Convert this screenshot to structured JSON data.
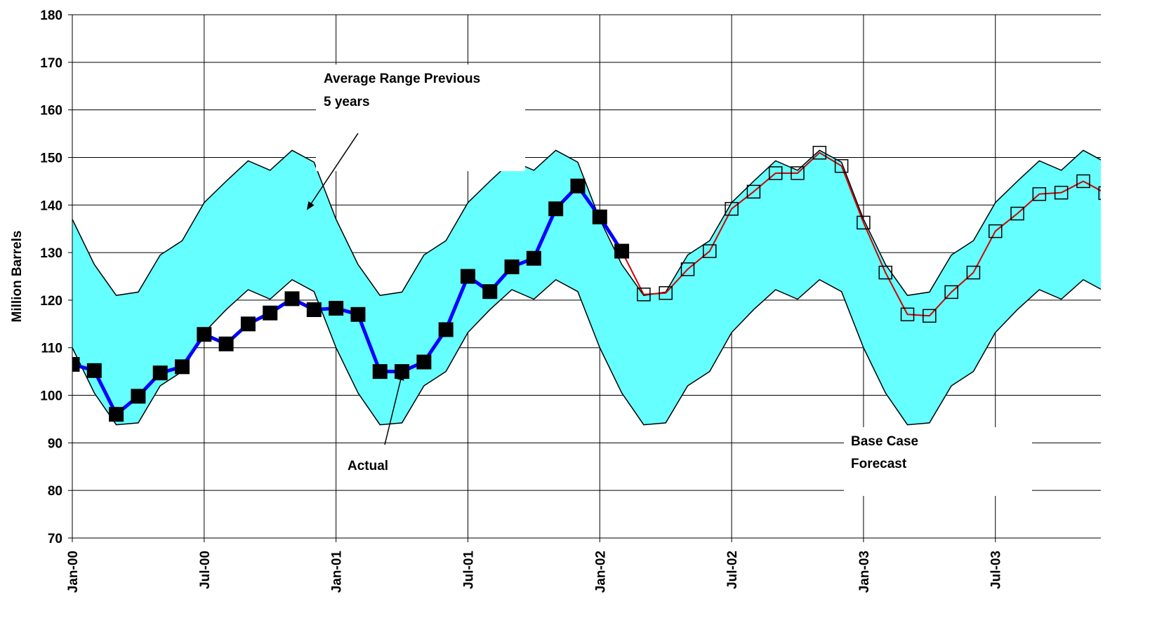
{
  "chart_data": {
    "type": "band-line",
    "y_label": "Million Barrels",
    "x": [
      0,
      1,
      2,
      3,
      4,
      5,
      6,
      7,
      8,
      9,
      10,
      11,
      12,
      13,
      14,
      15,
      16,
      17,
      18,
      19,
      20,
      21,
      22,
      23,
      24,
      25,
      26,
      27,
      28,
      29,
      30,
      31,
      32,
      33,
      34,
      35,
      36,
      37,
      38,
      39,
      40,
      41,
      42,
      43,
      44,
      45,
      46,
      47
    ],
    "xlim": [
      0,
      46.8
    ],
    "xticks": [
      {
        "value": 0,
        "label": "Jan-00"
      },
      {
        "value": 6,
        "label": "Jul-00"
      },
      {
        "value": 12,
        "label": "Jan-01"
      },
      {
        "value": 18,
        "label": "Jul-01"
      },
      {
        "value": 24,
        "label": "Jan-02"
      },
      {
        "value": 30,
        "label": "Jul-02"
      },
      {
        "value": 36,
        "label": "Jan-03"
      },
      {
        "value": 42,
        "label": "Jul-03"
      }
    ],
    "ylim": [
      70,
      180
    ],
    "yticks": [
      70,
      80,
      90,
      100,
      110,
      120,
      130,
      140,
      150,
      160,
      170,
      180
    ],
    "grid": true,
    "band": {
      "color": "#66ffff",
      "upper": [
        137,
        127.5,
        121,
        121.7,
        129.5,
        132.5,
        140.5,
        145,
        149.3,
        147.3,
        151.5,
        149,
        137,
        127.5,
        121,
        121.7,
        129.5,
        132.5,
        140.5,
        145,
        149.3,
        147.3,
        151.5,
        149,
        137,
        127.5,
        121,
        121.7,
        129.5,
        132.5,
        140.5,
        145,
        149.3,
        147.3,
        151.5,
        149,
        137,
        127.5,
        121,
        121.7,
        129.5,
        132.5,
        140.5,
        145,
        149.3,
        147.3,
        151.5,
        149
      ],
      "lower": [
        110,
        100.5,
        93.8,
        94.2,
        102,
        105,
        113.2,
        118,
        122.2,
        120.2,
        124.3,
        121.8,
        110,
        100.5,
        93.8,
        94.2,
        102,
        105,
        113.2,
        118,
        122.2,
        120.2,
        124.3,
        121.8,
        110,
        100.5,
        93.8,
        94.2,
        102,
        105,
        113.2,
        118,
        122.2,
        120.2,
        124.3,
        121.8,
        110,
        100.5,
        93.8,
        94.2,
        102,
        105,
        113.2,
        118,
        122.2,
        120.2,
        124.3,
        121.8
      ]
    },
    "series": [
      {
        "color": "#cc0000",
        "marker": "hollow-square",
        "values": [
          null,
          null,
          null,
          null,
          null,
          null,
          null,
          null,
          null,
          null,
          null,
          null,
          null,
          null,
          null,
          null,
          null,
          null,
          null,
          null,
          null,
          null,
          null,
          null,
          null,
          130.3,
          121.2,
          121.5,
          126.5,
          130.3,
          139.2,
          142.8,
          146.7,
          146.7,
          151,
          148.2,
          136.3,
          125.8,
          117,
          116.7,
          121.7,
          125.8,
          134.5,
          138.2,
          142.3,
          142.6,
          145,
          142.5
        ]
      },
      {
        "color": "#0000ff",
        "marker": "filled-square",
        "values": [
          106.5,
          105.2,
          96,
          99.8,
          104.7,
          106,
          112.8,
          110.8,
          115,
          117.3,
          120.3,
          118,
          118.3,
          117,
          105,
          105,
          107,
          113.8,
          125,
          121.8,
          127,
          128.8,
          139.2,
          144,
          137.5,
          130.3,
          null,
          null,
          null,
          null,
          null,
          null,
          null,
          null,
          null,
          null,
          null,
          null,
          null,
          null,
          null,
          null,
          null,
          null,
          null,
          null,
          null,
          null
        ]
      }
    ],
    "annotations": [
      {
        "lines": [
          "Average Range Previous",
          "5 years"
        ]
      },
      {
        "lines": [
          "Actual"
        ]
      },
      {
        "lines": [
          "Base Case",
          "Forecast"
        ]
      }
    ]
  }
}
